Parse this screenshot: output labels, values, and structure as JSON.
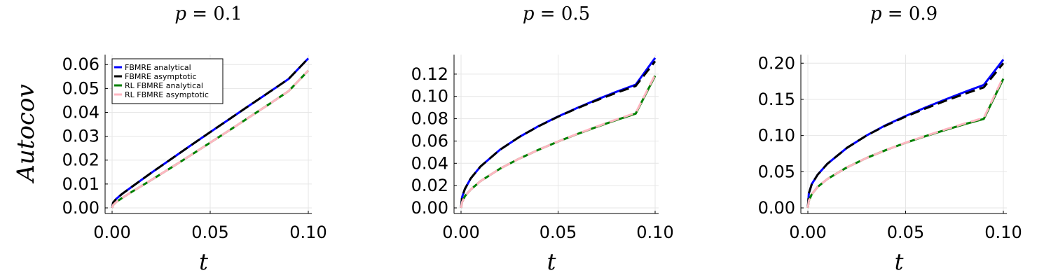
{
  "ylabel": "Autocov",
  "xlabel": "t",
  "chart_data": [
    {
      "type": "line",
      "title_var": "p",
      "title_value": "0.1",
      "xlim": [
        0,
        0.1
      ],
      "ylim": [
        0,
        0.063
      ],
      "x_ticks": [
        "0.00",
        "0.05",
        "0.10"
      ],
      "x_tick_values": [
        0,
        0.05,
        0.1
      ],
      "y_ticks": [
        "0.00",
        "0.01",
        "0.02",
        "0.03",
        "0.04",
        "0.05",
        "0.06"
      ],
      "y_tick_values": [
        0,
        0.01,
        0.02,
        0.03,
        0.04,
        0.05,
        0.06
      ],
      "grid": true,
      "legend": "top-left",
      "x": [
        0,
        0.0005,
        0.002,
        0.005,
        0.01,
        0.02,
        0.03,
        0.04,
        0.05,
        0.06,
        0.07,
        0.08,
        0.09,
        0.1
      ],
      "series": [
        {
          "name": "FBMRE analytical",
          "color": "#0000ff",
          "dash": "solid",
          "values": [
            0,
            0.0022,
            0.0037,
            0.0058,
            0.0088,
            0.0147,
            0.0204,
            0.0261,
            0.0317,
            0.0373,
            0.0429,
            0.0484,
            0.054,
            0.0626
          ]
        },
        {
          "name": "FBMRE asymptotic",
          "color": "#000000",
          "dash": "dashed",
          "values": [
            0,
            0.0022,
            0.0037,
            0.0058,
            0.0088,
            0.0147,
            0.0204,
            0.0261,
            0.0317,
            0.0373,
            0.0429,
            0.0484,
            0.054,
            0.0626
          ]
        },
        {
          "name": "RL FBMRE analytical",
          "color": "#008000",
          "dash": "solid",
          "values": [
            0,
            0.0012,
            0.0024,
            0.0041,
            0.0067,
            0.0117,
            0.0168,
            0.022,
            0.0273,
            0.0326,
            0.038,
            0.0434,
            0.0489,
            0.0575
          ]
        },
        {
          "name": "RL FBMRE asymptotic",
          "color": "#ffb6c1",
          "dash": "dashed",
          "values": [
            0,
            0.0012,
            0.0024,
            0.0041,
            0.0067,
            0.0117,
            0.0168,
            0.022,
            0.0273,
            0.0326,
            0.038,
            0.0434,
            0.0489,
            0.0575
          ]
        }
      ]
    },
    {
      "type": "line",
      "title_var": "p",
      "title_value": "0.5",
      "xlim": [
        0,
        0.1
      ],
      "ylim": [
        0,
        0.135
      ],
      "x_ticks": [
        "0.00",
        "0.05",
        "0.10"
      ],
      "x_tick_values": [
        0,
        0.05,
        0.1
      ],
      "y_ticks": [
        "0.00",
        "0.02",
        "0.04",
        "0.06",
        "0.08",
        "0.10",
        "0.12"
      ],
      "y_tick_values": [
        0,
        0.02,
        0.04,
        0.06,
        0.08,
        0.1,
        0.12
      ],
      "grid": true,
      "legend": "none",
      "x": [
        0,
        0.0005,
        0.002,
        0.005,
        0.01,
        0.02,
        0.03,
        0.04,
        0.05,
        0.06,
        0.07,
        0.08,
        0.09,
        0.1
      ],
      "series": [
        {
          "name": "FBMRE analytical",
          "color": "#0000ff",
          "dash": "solid",
          "values": [
            0,
            0.0095,
            0.017,
            0.0265,
            0.0371,
            0.0521,
            0.0636,
            0.0734,
            0.082,
            0.0898,
            0.0972,
            0.1041,
            0.1106,
            0.1345
          ]
        },
        {
          "name": "FBMRE asymptotic",
          "color": "#000000",
          "dash": "dashed",
          "values": [
            0,
            0.0095,
            0.017,
            0.0265,
            0.0371,
            0.0521,
            0.0636,
            0.0733,
            0.0818,
            0.0895,
            0.0966,
            0.1032,
            0.1094,
            0.1315
          ]
        },
        {
          "name": "RL FBMRE analytical",
          "color": "#008000",
          "dash": "solid",
          "values": [
            0,
            0.005,
            0.0105,
            0.0165,
            0.024,
            0.0351,
            0.0442,
            0.0522,
            0.0595,
            0.0663,
            0.0727,
            0.0788,
            0.0846,
            0.1185
          ]
        },
        {
          "name": "RL FBMRE asymptotic",
          "color": "#ffb6c1",
          "dash": "dashed",
          "values": [
            0,
            0.005,
            0.0105,
            0.0165,
            0.024,
            0.0351,
            0.0442,
            0.0522,
            0.0596,
            0.0665,
            0.073,
            0.0793,
            0.0852,
            0.1195
          ]
        }
      ]
    },
    {
      "type": "line",
      "title_var": "p",
      "title_value": "0.9",
      "xlim": [
        0,
        0.1
      ],
      "ylim": [
        0,
        0.208
      ],
      "x_ticks": [
        "0.00",
        "0.05",
        "0.10"
      ],
      "x_tick_values": [
        0,
        0.05,
        0.1
      ],
      "y_ticks": [
        "0.00",
        "0.05",
        "0.10",
        "0.15",
        "0.20"
      ],
      "y_tick_values": [
        0,
        0.05,
        0.1,
        0.15,
        0.2
      ],
      "grid": true,
      "legend": "none",
      "x": [
        0,
        0.0005,
        0.002,
        0.005,
        0.01,
        0.02,
        0.03,
        0.04,
        0.05,
        0.06,
        0.07,
        0.08,
        0.09,
        0.1
      ],
      "series": [
        {
          "name": "FBMRE analytical",
          "color": "#0000ff",
          "dash": "solid",
          "values": [
            0,
            0.02,
            0.033,
            0.046,
            0.061,
            0.083,
            0.1,
            0.1145,
            0.127,
            0.1385,
            0.1495,
            0.16,
            0.17,
            0.205
          ]
        },
        {
          "name": "FBMRE asymptotic",
          "color": "#000000",
          "dash": "dashed",
          "values": [
            0,
            0.02,
            0.033,
            0.046,
            0.061,
            0.083,
            0.1,
            0.114,
            0.1262,
            0.1372,
            0.1476,
            0.1574,
            0.1666,
            0.2
          ]
        },
        {
          "name": "RL FBMRE analytical",
          "color": "#008000",
          "dash": "solid",
          "values": [
            0,
            0.01,
            0.019,
            0.029,
            0.04,
            0.056,
            0.069,
            0.08,
            0.09,
            0.099,
            0.1075,
            0.1155,
            0.123,
            0.1785
          ]
        },
        {
          "name": "RL FBMRE asymptotic",
          "color": "#ffb6c1",
          "dash": "dashed",
          "values": [
            0,
            0.01,
            0.019,
            0.029,
            0.04,
            0.056,
            0.069,
            0.08,
            0.0902,
            0.0994,
            0.1082,
            0.1165,
            0.1244,
            0.181
          ]
        }
      ]
    }
  ]
}
